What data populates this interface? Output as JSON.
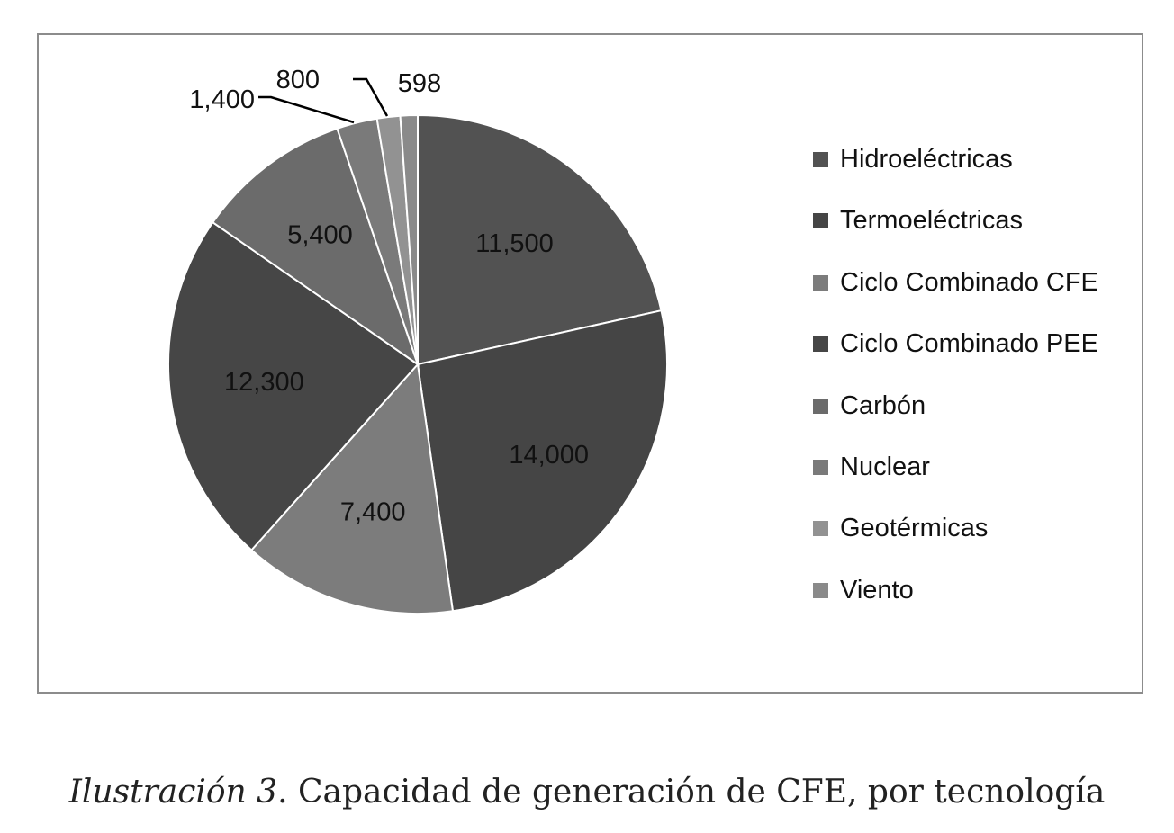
{
  "chart_data": {
    "type": "pie",
    "title": "",
    "categories": [
      "Hidroeléctricas",
      "Termoeléctricas",
      "Ciclo Combinado CFE",
      "Ciclo Combinado PEE",
      "Carbón",
      "Nuclear",
      "Geotérmicas",
      "Viento"
    ],
    "values": [
      11500,
      14000,
      7400,
      12300,
      5400,
      1400,
      800,
      598
    ],
    "value_labels": [
      "11,500",
      "14,000",
      "7,400",
      "12,300",
      "5,400",
      "1,400",
      "800",
      "598"
    ],
    "colors": [
      "#525252",
      "#454545",
      "#7c7c7c",
      "#464646",
      "#6b6b6b",
      "#7a7a7a",
      "#929292",
      "#8a8a8a"
    ],
    "legend_position": "right",
    "start_angle": "12 o'clock, clockwise"
  },
  "caption": {
    "label": "Ilustración 3",
    "text": ". Capacidad de generación de CFE, por tecnología"
  }
}
